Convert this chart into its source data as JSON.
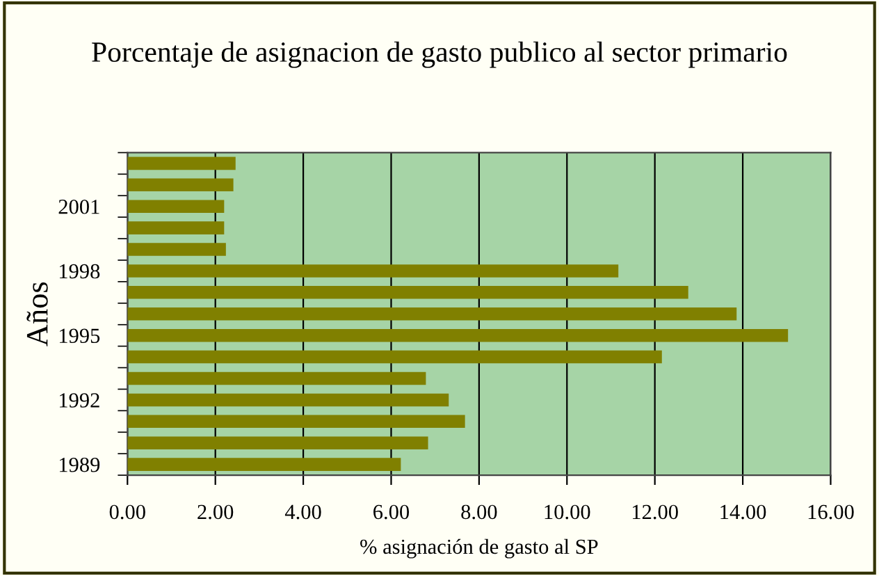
{
  "chart_data": {
    "type": "bar",
    "orientation": "horizontal",
    "title": "Porcentaje de asignacion de gasto publico al sector primario",
    "xlabel": "% asignación de gasto al SP",
    "ylabel": "Años",
    "categories": [
      null,
      null,
      "2001",
      null,
      null,
      "1998",
      null,
      null,
      "1995",
      null,
      null,
      "1992",
      null,
      null,
      "1989"
    ],
    "values": [
      2.46,
      2.41,
      2.2,
      2.2,
      2.24,
      11.17,
      12.76,
      13.86,
      15.03,
      12.16,
      6.79,
      7.31,
      7.68,
      6.84,
      6.22
    ],
    "color": "#808000",
    "xlim": [
      0,
      16
    ],
    "xticks": [
      {
        "value": 0,
        "label": "0.00"
      },
      {
        "value": 2,
        "label": "2.00"
      },
      {
        "value": 4,
        "label": "4.00"
      },
      {
        "value": 6,
        "label": "6.00"
      },
      {
        "value": 8,
        "label": "8.00"
      },
      {
        "value": 10,
        "label": "10.00"
      },
      {
        "value": 12,
        "label": "12.00"
      },
      {
        "value": 14,
        "label": "14.00"
      },
      {
        "value": 16,
        "label": "16.00"
      }
    ],
    "grid": "x"
  }
}
